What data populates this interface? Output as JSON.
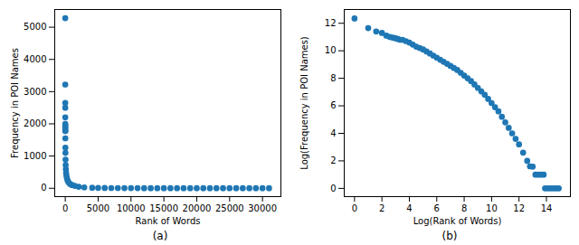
{
  "chart_data": [
    {
      "type": "scatter",
      "title": "(a)",
      "xlabel": "Rank of Words",
      "ylabel": "Frequency in POI Names",
      "color": "#1f77b4",
      "marker": "circle",
      "grid": false,
      "xlim": [
        -1600,
        32800
      ],
      "xticks": [
        0,
        5000,
        10000,
        15000,
        20000,
        25000,
        30000
      ],
      "ylim": [
        -260,
        5550
      ],
      "yticks": [
        0,
        1000,
        2000,
        3000,
        4000,
        5000
      ],
      "x": [
        1,
        2,
        3,
        4,
        5,
        6,
        7,
        8,
        9,
        10,
        12,
        16,
        23,
        32,
        45,
        64,
        90,
        128,
        181,
        256,
        362,
        512,
        724,
        1024,
        1448,
        2048,
        2896,
        4096,
        5000,
        6000,
        7000,
        8000,
        9000,
        10000,
        11000,
        12000,
        13000,
        14000,
        15000,
        16000,
        17000,
        18000,
        19000,
        20000,
        21000,
        22000,
        23000,
        24000,
        25000,
        26000,
        27000,
        28000,
        29000,
        30000,
        31000
      ],
      "values": [
        5280,
        3220,
        2650,
        2500,
        2200,
        2000,
        1950,
        1900,
        1850,
        1780,
        1780,
        1550,
        1260,
        1100,
        890,
        720,
        590,
        480,
        390,
        310,
        240,
        180,
        135,
        100,
        74,
        48,
        28,
        16,
        12,
        9,
        7,
        6,
        5,
        4,
        4,
        3,
        3,
        3,
        2,
        2,
        2,
        2,
        2,
        1,
        1,
        1,
        1,
        1,
        1,
        1,
        1,
        1,
        1,
        1,
        1
      ]
    },
    {
      "type": "scatter",
      "title": "(b)",
      "xlabel": "Log(Rank of Words)",
      "ylabel": "Log(Frequency in POI Names)",
      "color": "#1f77b4",
      "marker": "circle",
      "grid": false,
      "xlim": [
        -0.75,
        15.75
      ],
      "xticks": [
        0,
        2,
        4,
        6,
        8,
        10,
        12,
        14
      ],
      "ylim": [
        -0.6,
        13.0
      ],
      "yticks": [
        0,
        2,
        4,
        6,
        8,
        10,
        12
      ],
      "x": [
        0,
        1,
        1.58,
        2,
        2.32,
        2.58,
        2.81,
        3,
        3.17,
        3.32,
        3.5,
        3.75,
        4,
        4.25,
        4.5,
        4.75,
        5,
        5.25,
        5.5,
        5.75,
        6,
        6.25,
        6.5,
        6.75,
        7,
        7.25,
        7.5,
        7.75,
        8,
        8.25,
        8.5,
        8.75,
        9,
        9.25,
        9.5,
        9.75,
        10,
        10.25,
        10.5,
        10.75,
        11,
        11.25,
        11.5,
        11.75,
        12,
        12.3,
        12.6,
        12.8,
        13.0,
        13.2,
        13.4,
        13.6,
        13.8,
        13.9,
        14.1,
        14.3,
        14.5,
        14.7,
        14.9
      ],
      "values": [
        12.35,
        11.65,
        11.4,
        11.3,
        11.1,
        11.0,
        10.95,
        10.9,
        10.85,
        10.8,
        10.8,
        10.7,
        10.6,
        10.45,
        10.3,
        10.2,
        10.1,
        9.95,
        9.8,
        9.65,
        9.5,
        9.35,
        9.2,
        9.05,
        8.9,
        8.75,
        8.6,
        8.4,
        8.2,
        8.0,
        7.8,
        7.55,
        7.3,
        7.05,
        6.8,
        6.5,
        6.2,
        5.9,
        5.6,
        5.2,
        4.8,
        4.4,
        4.0,
        3.6,
        3.2,
        2.6,
        2.0,
        1.6,
        1.58,
        1.0,
        1.0,
        1.0,
        1.0,
        0,
        0,
        0,
        0,
        0,
        0
      ]
    }
  ]
}
